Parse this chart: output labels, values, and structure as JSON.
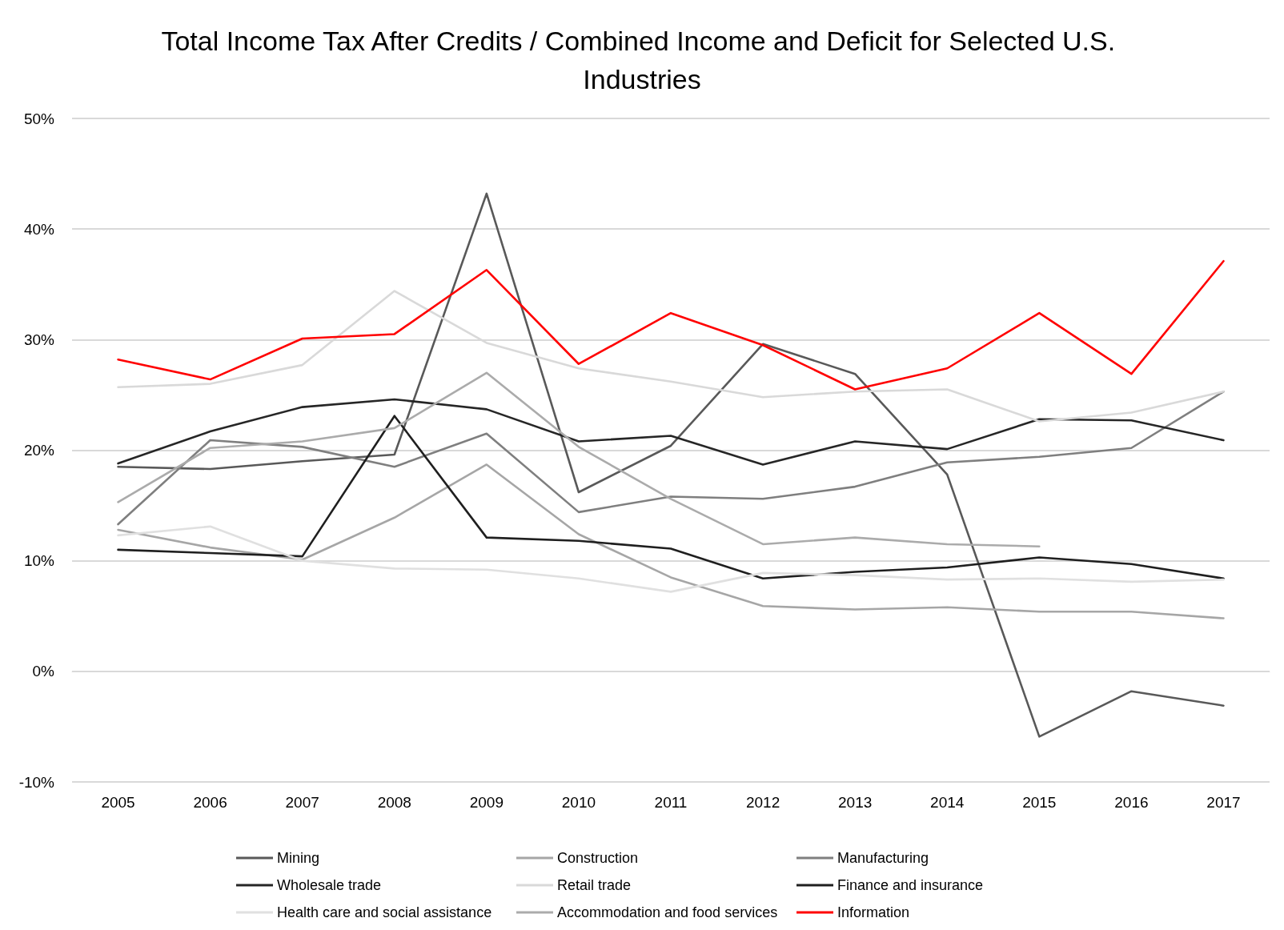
{
  "chart_data": {
    "type": "line",
    "title": "Total Income Tax After Credits / Combined Income and Deficit for Selected U.S. Industries",
    "categories": [
      "2005",
      "2006",
      "2007",
      "2008",
      "2009",
      "2010",
      "2011",
      "2012",
      "2013",
      "2014",
      "2015",
      "2016",
      "2017"
    ],
    "series": [
      {
        "name": "Mining",
        "color": "#595959",
        "values": [
          18.5,
          18.3,
          19.0,
          19.6,
          43.2,
          16.2,
          20.4,
          29.6,
          26.9,
          17.8,
          -5.9,
          -1.8,
          -3.1
        ]
      },
      {
        "name": "Construction",
        "color": "#a6a6a6",
        "values": [
          12.8,
          11.2,
          10.1,
          13.9,
          18.7,
          12.4,
          8.5,
          5.9,
          5.6,
          5.8,
          5.4,
          5.4,
          4.8
        ]
      },
      {
        "name": "Manufacturing",
        "color": "#7f7f7f",
        "values": [
          13.3,
          20.9,
          20.3,
          18.5,
          21.5,
          14.4,
          15.8,
          15.6,
          16.7,
          18.9,
          19.4,
          20.2,
          25.3
        ]
      },
      {
        "name": "Wholesale trade",
        "color": "#262626",
        "values": [
          18.8,
          21.7,
          23.9,
          24.6,
          23.7,
          20.8,
          21.3,
          18.7,
          20.8,
          20.1,
          22.8,
          22.7,
          20.9
        ]
      },
      {
        "name": "Retail trade",
        "color": "#d9d9d9",
        "values": [
          25.7,
          26.0,
          27.7,
          34.4,
          29.7,
          27.4,
          26.2,
          24.8,
          25.3,
          25.5,
          22.6,
          23.4,
          25.3
        ]
      },
      {
        "name": "Finance and insurance",
        "color": "#1f1f1f",
        "values": [
          11.0,
          10.7,
          10.4,
          23.1,
          12.1,
          11.8,
          11.1,
          8.4,
          9.0,
          9.4,
          10.3,
          9.7,
          8.4
        ]
      },
      {
        "name": "Health care and social assistance",
        "color": "#e0e0e0",
        "values": [
          12.3,
          13.1,
          10.0,
          9.3,
          9.2,
          8.4,
          7.2,
          8.9,
          8.7,
          8.3,
          8.4,
          8.1,
          8.3
        ]
      },
      {
        "name": "Accommodation and food services",
        "color": "#ababab",
        "values": [
          15.3,
          20.2,
          20.8,
          22.0,
          27.0,
          20.3,
          15.6,
          11.5,
          12.1,
          11.5,
          11.3,
          null,
          null
        ]
      },
      {
        "name": "Information",
        "color": "#ff0000",
        "values": [
          28.2,
          26.4,
          30.1,
          30.5,
          36.3,
          27.8,
          32.4,
          29.5,
          25.5,
          27.4,
          32.4,
          26.9,
          37.1
        ]
      }
    ],
    "ylim": [
      -10,
      50
    ],
    "yticks": [
      {
        "value": -10,
        "label": "-10%"
      },
      {
        "value": 0,
        "label": "0%"
      },
      {
        "value": 10,
        "label": "10%"
      },
      {
        "value": 20,
        "label": "20%"
      },
      {
        "value": 30,
        "label": "30%"
      },
      {
        "value": 40,
        "label": "40%"
      },
      {
        "value": 50,
        "label": "50%"
      }
    ],
    "grid": "y",
    "legend": "bottom",
    "marker": "none",
    "line_style": "solid"
  }
}
